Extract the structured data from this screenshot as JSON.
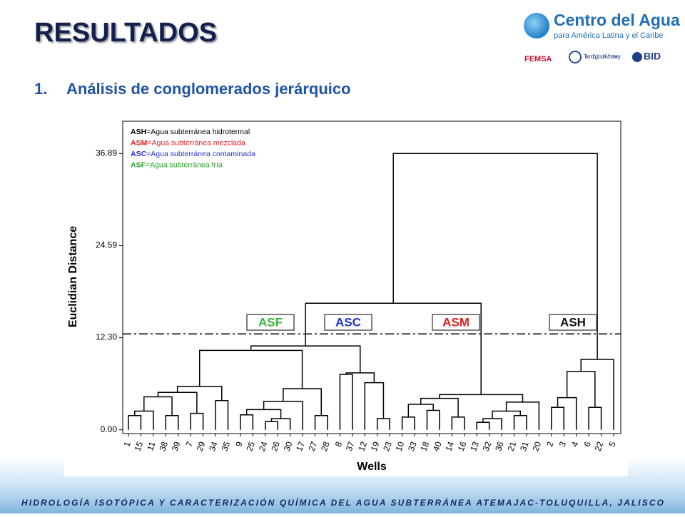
{
  "slide": {
    "title": "RESULTADOS",
    "section_number": "1.",
    "section_title": "Análisis de conglomerados jerárquico",
    "logo": {
      "name": "Centro del Agua",
      "tagline": "para América Latina y el Caribe",
      "partners": [
        "FEMSA",
        "Tecnológico de Monterrey",
        "BID"
      ]
    },
    "footer": "HIDROLOGÍA ISOTÓPICA Y CARACTERIZACIÓN QUÍMICA DEL AGUA SUBTERRÁNEA ATEMAJAC-TOLUQUILLA, JALISCO"
  },
  "chart_data": {
    "type": "dendrogram",
    "x_label": "Wells",
    "y_label": "Euclidian Distance",
    "categories": [
      "1",
      "15",
      "11",
      "38",
      "39",
      "7",
      "29",
      "34",
      "35",
      "9",
      "25",
      "24",
      "26",
      "30",
      "17",
      "27",
      "28",
      "8",
      "37",
      "12",
      "19",
      "23",
      "10",
      "33",
      "18",
      "40",
      "14",
      "16",
      "13",
      "32",
      "36",
      "21",
      "31",
      "20",
      "2",
      "3",
      "4",
      "6",
      "22",
      "5"
    ],
    "merges": [
      {
        "left": 0,
        "right": 1,
        "height": 1.9
      },
      {
        "left": 40,
        "right": 2,
        "height": 2.5
      },
      {
        "left": 3,
        "right": 4,
        "height": 1.9
      },
      {
        "left": 41,
        "right": 42,
        "height": 4.4
      },
      {
        "left": 5,
        "right": 6,
        "height": 2.2
      },
      {
        "left": 43,
        "right": 44,
        "height": 5.0
      },
      {
        "left": 7,
        "right": 8,
        "height": 3.9
      },
      {
        "left": 45,
        "right": 46,
        "height": 5.8
      },
      {
        "left": 9,
        "right": 10,
        "height": 2.0
      },
      {
        "left": 11,
        "right": 12,
        "height": 1.1
      },
      {
        "left": 49,
        "right": 13,
        "height": 1.5
      },
      {
        "left": 48,
        "right": 50,
        "height": 2.7
      },
      {
        "left": 15,
        "right": 16,
        "height": 1.9
      },
      {
        "left": 51,
        "right": 14,
        "height": 3.8
      },
      {
        "left": 53,
        "right": 52,
        "height": 5.5
      },
      {
        "left": 47,
        "right": 54,
        "height": 10.6
      },
      {
        "left": 17,
        "right": 18,
        "height": 7.4
      },
      {
        "left": 20,
        "right": 21,
        "height": 1.5
      },
      {
        "left": 19,
        "right": 57,
        "height": 6.3
      },
      {
        "left": 56,
        "right": 58,
        "height": 7.6
      },
      {
        "left": 55,
        "right": 59,
        "height": 11.2
      },
      {
        "left": 22,
        "right": 23,
        "height": 1.7
      },
      {
        "left": 24,
        "right": 25,
        "height": 2.6
      },
      {
        "left": 61,
        "right": 62,
        "height": 3.4
      },
      {
        "left": 26,
        "right": 27,
        "height": 1.7
      },
      {
        "left": 63,
        "right": 64,
        "height": 4.2
      },
      {
        "left": 28,
        "right": 29,
        "height": 1.0
      },
      {
        "left": 66,
        "right": 30,
        "height": 1.5
      },
      {
        "left": 31,
        "right": 32,
        "height": 1.9
      },
      {
        "left": 67,
        "right": 68,
        "height": 2.5
      },
      {
        "left": 69,
        "right": 33,
        "height": 3.7
      },
      {
        "left": 65,
        "right": 70,
        "height": 4.7
      },
      {
        "left": 60,
        "right": 71,
        "height": 16.9
      },
      {
        "left": 34,
        "right": 35,
        "height": 3.0
      },
      {
        "left": 73,
        "right": 36,
        "height": 4.3
      },
      {
        "left": 37,
        "right": 38,
        "height": 3.0
      },
      {
        "left": 74,
        "right": 75,
        "height": 7.8
      },
      {
        "left": 76,
        "right": 39,
        "height": 9.4
      },
      {
        "left": 72,
        "right": 77,
        "height": 36.89
      }
    ],
    "cut_height": 12.8,
    "ylim": [
      -0.5,
      41.2
    ],
    "yticks": [
      {
        "value": 0,
        "label": "0.00"
      },
      {
        "value": 12.3,
        "label": "12.30"
      },
      24.59,
      36.89
    ],
    "color": "#000000",
    "groups": [
      {
        "label": "ASF",
        "color": "#3cb43c"
      },
      {
        "label": "ASC",
        "color": "#2233cc"
      },
      {
        "label": "ASM",
        "color": "#e02020"
      },
      {
        "label": "ASH",
        "color": "#111111"
      }
    ],
    "legend": [
      {
        "code": "ASH",
        "text": "=Agua subterránea hidrotermal",
        "color": "#000000"
      },
      {
        "code": "ASM",
        "text": "=Agua subterránea mezclada",
        "color": "#e02020"
      },
      {
        "code": "ASC",
        "text": "=Agua subterránea contaminada",
        "color": "#2233cc"
      },
      {
        "code": "ASF",
        "text": "=Agua subterránea fría",
        "color": "#2aa02a"
      }
    ]
  }
}
